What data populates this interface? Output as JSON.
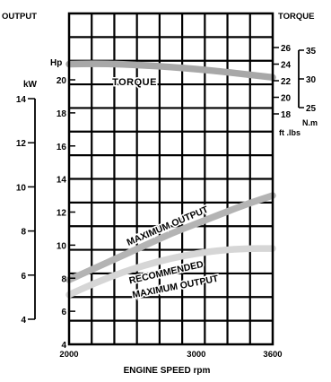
{
  "chart_data": {
    "type": "line",
    "title_left": "OUTPUT",
    "title_right": "TORQUE",
    "xlabel": "ENGINE SPEED rpm",
    "x_ticks": [
      "2000",
      "3000",
      "3600"
    ],
    "x_range": [
      2000,
      3600
    ],
    "hp_unit": "Hp",
    "kw_unit": "kW",
    "hp_range": [
      4,
      20
    ],
    "hp_ticks": [
      "4",
      "6",
      "8",
      "10",
      "12",
      "14",
      "16",
      "18",
      "20"
    ],
    "kw_range": [
      4,
      14
    ],
    "kw_ticks": [
      "4",
      "6",
      "8",
      "10",
      "12",
      "14"
    ],
    "torque_ftlbs_unit": "ft .lbs",
    "torque_ftlbs_range": [
      18,
      26
    ],
    "torque_ftlbs_ticks": [
      "18",
      "20",
      "22",
      "24",
      "26"
    ],
    "torque_nm_unit": "N.m",
    "torque_nm_range": [
      25,
      35
    ],
    "torque_nm_ticks": [
      "25",
      "30",
      "35"
    ],
    "series": [
      {
        "name": "TORQUE",
        "axis": "torque_ftlbs",
        "color": "#a8a8a8",
        "x": [
          2000,
          2200,
          2400,
          2600,
          2800,
          3000,
          3200,
          3400,
          3600
        ],
        "values": [
          24.0,
          24.05,
          24.0,
          23.85,
          23.65,
          23.4,
          23.1,
          22.75,
          22.4
        ]
      },
      {
        "name": "MAXIMUM OUTPUT",
        "axis": "hp",
        "color": "#b4b4b4",
        "x": [
          2000,
          2200,
          2400,
          2600,
          2800,
          3000,
          3200,
          3400,
          3600
        ],
        "values": [
          7.9,
          8.6,
          9.3,
          10.0,
          10.7,
          11.3,
          11.9,
          12.5,
          13.0
        ]
      },
      {
        "name": "RECOMMENDED MAXIMUM OUTPUT",
        "axis": "hp",
        "color": "#d6d6d6",
        "x": [
          2000,
          2200,
          2400,
          2600,
          2800,
          3000,
          3200,
          3400,
          3600
        ],
        "values": [
          7.0,
          7.7,
          8.3,
          8.8,
          9.2,
          9.5,
          9.7,
          9.8,
          9.8
        ]
      }
    ],
    "series_labels": {
      "torque": "TORQUE",
      "max_output": "MAXIMUM OUTPUT",
      "recommended_line1": "RECOMMENDED",
      "recommended_line2": "MAXIMUM OUTPUT"
    },
    "grid": true
  }
}
